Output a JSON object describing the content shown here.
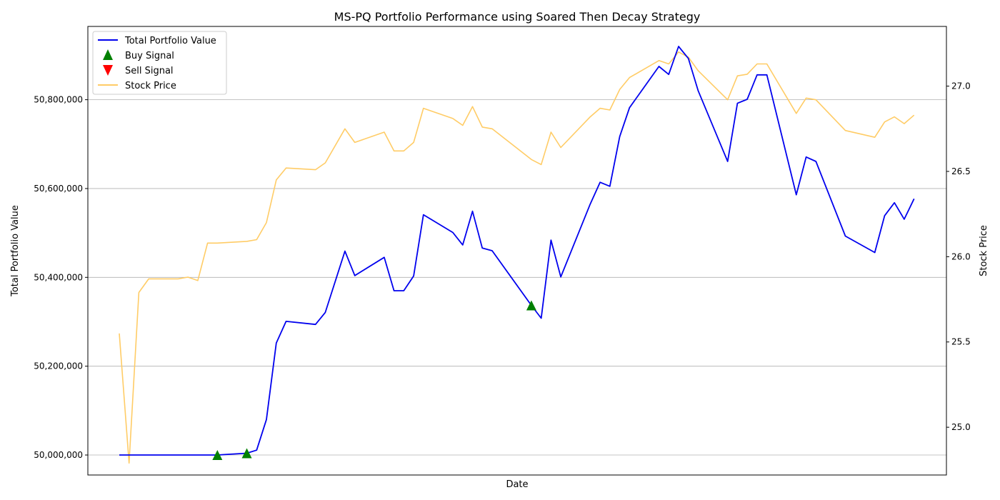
{
  "chart_data": {
    "type": "line",
    "title": "MS-PQ Portfolio Performance using Soared Then Decay Strategy",
    "xlabel": "Date",
    "ylabel": "Total Portfolio Value",
    "y2label": "Stock Price",
    "x": [
      0,
      1,
      2,
      3,
      4,
      5,
      6,
      7,
      8,
      9,
      10,
      11,
      12,
      13,
      14,
      15,
      16,
      17,
      18,
      19,
      20,
      21,
      22,
      23,
      24,
      25,
      26,
      27,
      28,
      29,
      30,
      31,
      32,
      33,
      34,
      35,
      36,
      37,
      38,
      39,
      40,
      41,
      42,
      43,
      44,
      45,
      46,
      47,
      48,
      49,
      50,
      51,
      52,
      53,
      54,
      55,
      56,
      57,
      58,
      59,
      60,
      61,
      62,
      63,
      64,
      65,
      66,
      67,
      68,
      69,
      70,
      71,
      72,
      73,
      74,
      75,
      76,
      77,
      78,
      79,
      80
    ],
    "ylim": [
      49955000,
      50965000
    ],
    "y2lim": [
      24.72,
      27.35
    ],
    "yticks": [
      50000000,
      50200000,
      50400000,
      50600000,
      50800000
    ],
    "ytick_labels": [
      "50,000,000",
      "50,200,000",
      "50,400,000",
      "50,600,000",
      "50,800,000"
    ],
    "y2ticks": [
      25.0,
      25.5,
      26.0,
      26.5,
      27.0
    ],
    "y2tick_labels": [
      "25.0",
      "25.5",
      "26.0",
      "26.5",
      "27.0"
    ],
    "grid": true,
    "legend_position": "top-left",
    "series": [
      {
        "name": "Total Portfolio Value",
        "axis": "left",
        "color": "#0000ee",
        "points": [
          [
            0,
            50000000
          ],
          [
            1,
            50000000
          ],
          [
            2,
            50000000
          ],
          [
            3,
            50000000
          ],
          [
            4,
            50000000
          ],
          [
            7,
            50000000
          ],
          [
            10,
            50000000
          ],
          [
            13,
            50004000
          ],
          [
            14,
            50011000
          ],
          [
            15,
            50080000
          ],
          [
            16,
            50252000
          ],
          [
            17,
            50301000
          ],
          [
            20,
            50294000
          ],
          [
            21,
            50321000
          ],
          [
            23,
            50459000
          ],
          [
            24,
            50404000
          ],
          [
            27,
            50445000
          ],
          [
            28,
            50370000
          ],
          [
            29,
            50370000
          ],
          [
            30,
            50403000
          ],
          [
            31,
            50541000
          ],
          [
            34,
            50501000
          ],
          [
            35,
            50473000
          ],
          [
            36,
            50549000
          ],
          [
            37,
            50466000
          ],
          [
            38,
            50460000
          ],
          [
            42,
            50337000
          ],
          [
            43,
            50308000
          ],
          [
            44,
            50484000
          ],
          [
            45,
            50401000
          ],
          [
            48,
            50565000
          ],
          [
            49,
            50614000
          ],
          [
            50,
            50605000
          ],
          [
            51,
            50717000
          ],
          [
            52,
            50782000
          ],
          [
            55,
            50875000
          ],
          [
            56,
            50857000
          ],
          [
            57,
            50920000
          ],
          [
            58,
            50893000
          ],
          [
            59,
            50820000
          ],
          [
            62,
            50661000
          ],
          [
            63,
            50792000
          ],
          [
            64,
            50801000
          ],
          [
            65,
            50856000
          ],
          [
            66,
            50856000
          ],
          [
            69,
            50586000
          ],
          [
            70,
            50671000
          ],
          [
            71,
            50661000
          ],
          [
            74,
            50493000
          ],
          [
            77,
            50456000
          ],
          [
            78,
            50539000
          ],
          [
            79,
            50568000
          ],
          [
            80,
            50531000
          ],
          [
            81,
            50577000
          ]
        ]
      },
      {
        "name": "Stock Price",
        "axis": "right",
        "color": "#ffcc66",
        "points": [
          [
            0,
            25.55
          ],
          [
            1,
            24.79
          ],
          [
            2,
            25.79
          ],
          [
            3,
            25.87
          ],
          [
            4,
            25.87
          ],
          [
            6,
            25.87
          ],
          [
            7,
            25.88
          ],
          [
            8,
            25.86
          ],
          [
            9,
            26.08
          ],
          [
            10,
            26.08
          ],
          [
            13,
            26.09
          ],
          [
            14,
            26.1
          ],
          [
            15,
            26.2
          ],
          [
            16,
            26.45
          ],
          [
            17,
            26.52
          ],
          [
            20,
            26.51
          ],
          [
            21,
            26.55
          ],
          [
            23,
            26.75
          ],
          [
            24,
            26.67
          ],
          [
            27,
            26.73
          ],
          [
            28,
            26.62
          ],
          [
            29,
            26.62
          ],
          [
            30,
            26.67
          ],
          [
            31,
            26.87
          ],
          [
            34,
            26.81
          ],
          [
            35,
            26.77
          ],
          [
            36,
            26.88
          ],
          [
            37,
            26.76
          ],
          [
            38,
            26.75
          ],
          [
            42,
            26.57
          ],
          [
            43,
            26.54
          ],
          [
            44,
            26.73
          ],
          [
            45,
            26.64
          ],
          [
            48,
            26.82
          ],
          [
            49,
            26.87
          ],
          [
            50,
            26.86
          ],
          [
            51,
            26.98
          ],
          [
            52,
            27.05
          ],
          [
            55,
            27.15
          ],
          [
            56,
            27.13
          ],
          [
            57,
            27.2
          ],
          [
            58,
            27.17
          ],
          [
            59,
            27.09
          ],
          [
            62,
            26.92
          ],
          [
            63,
            27.06
          ],
          [
            64,
            27.07
          ],
          [
            65,
            27.13
          ],
          [
            66,
            27.13
          ],
          [
            69,
            26.84
          ],
          [
            70,
            26.93
          ],
          [
            71,
            26.92
          ],
          [
            74,
            26.74
          ],
          [
            77,
            26.7
          ],
          [
            78,
            26.79
          ],
          [
            79,
            26.82
          ],
          [
            80,
            26.78
          ],
          [
            81,
            26.83
          ]
        ]
      }
    ],
    "markers": [
      {
        "name": "Buy Signal",
        "symbol": "triangle-up",
        "color": "#008000",
        "points": [
          [
            10,
            50000000
          ],
          [
            13,
            50004000
          ],
          [
            42,
            50337000
          ]
        ]
      },
      {
        "name": "Sell Signal",
        "symbol": "triangle-down",
        "color": "#ff0000",
        "points": []
      }
    ]
  }
}
